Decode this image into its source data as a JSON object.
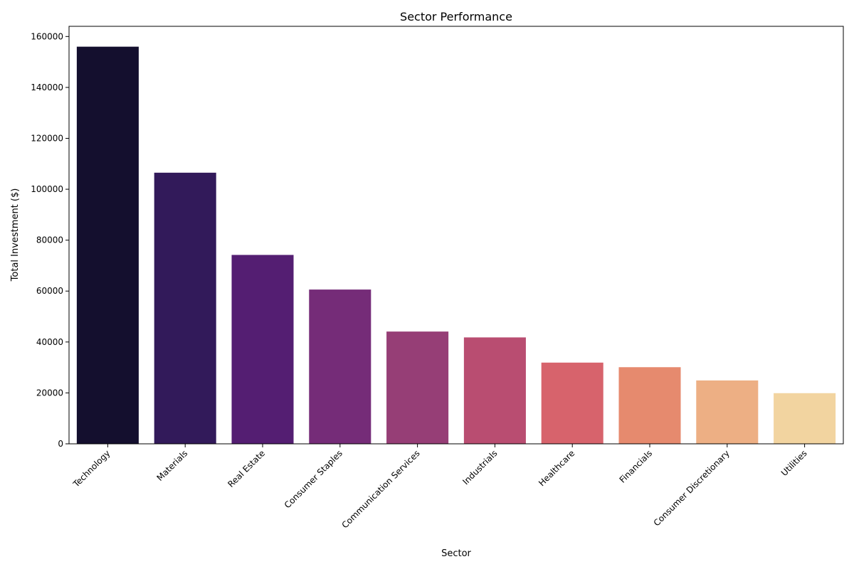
{
  "chart_data": {
    "type": "bar",
    "title": "Sector Performance",
    "xlabel": "Sector",
    "ylabel": "Total Investment ($)",
    "categories": [
      "Technology",
      "Materials",
      "Real Estate",
      "Consumer Staples",
      "Communication Services",
      "Industrials",
      "Healthcare",
      "Financials",
      "Consumer Discretionary",
      "Utilities"
    ],
    "values": [
      156000,
      106500,
      74200,
      60600,
      44100,
      41800,
      31900,
      30100,
      24900,
      19900
    ],
    "ylim": [
      0,
      164000
    ],
    "yticks": [
      0,
      20000,
      40000,
      60000,
      80000,
      100000,
      120000,
      140000,
      160000
    ],
    "grid": false,
    "legend": "none",
    "colors": [
      "#140f2e",
      "#321a5a",
      "#541e72",
      "#752c78",
      "#963e76",
      "#b94d71",
      "#d7636c",
      "#e68a6e",
      "#edaf84",
      "#f2d4a0"
    ]
  }
}
